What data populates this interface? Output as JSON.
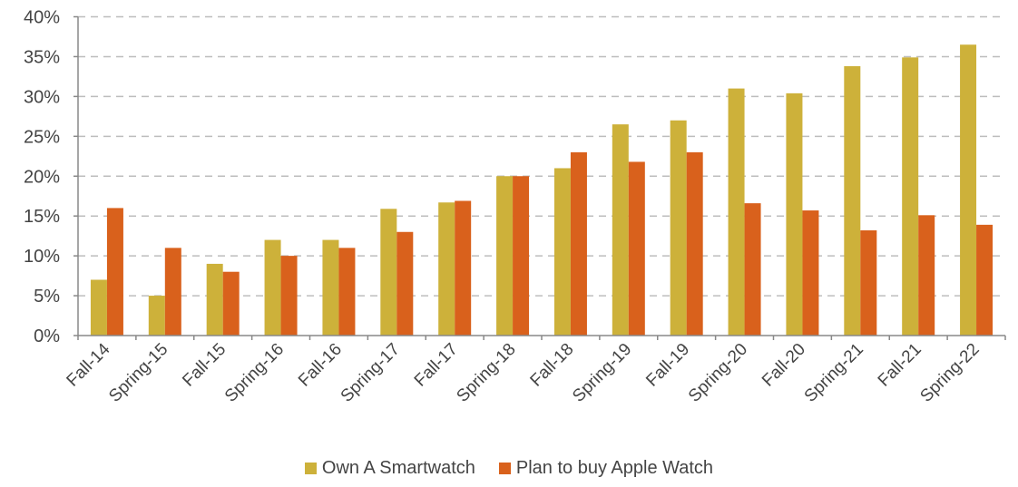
{
  "chart_data": {
    "type": "bar",
    "categories": [
      "Fall-14",
      "Spring-15",
      "Fall-15",
      "Spring-16",
      "Fall-16",
      "Spring-17",
      "Fall-17",
      "Spring-18",
      "Fall-18",
      "Spring-19",
      "Fall-19",
      "Spring-20",
      "Fall-20",
      "Spring-21",
      "Fall-21",
      "Spring-22"
    ],
    "series": [
      {
        "name": "Own A Smartwatch",
        "color": "#CDB13A",
        "values": [
          7.0,
          5.0,
          9.0,
          12.0,
          12.0,
          15.9,
          16.7,
          20.0,
          21.0,
          26.5,
          27.0,
          31.0,
          30.4,
          33.8,
          34.9,
          36.5
        ]
      },
      {
        "name": "Plan to buy Apple Watch",
        "color": "#D9611C",
        "values": [
          16.0,
          11.0,
          8.0,
          10.0,
          11.0,
          13.0,
          16.9,
          20.0,
          23.0,
          21.8,
          23.0,
          16.6,
          15.7,
          13.2,
          15.1,
          13.9
        ]
      }
    ],
    "yticks": [
      "0%",
      "5%",
      "10%",
      "15%",
      "20%",
      "25%",
      "30%",
      "35%",
      "40%"
    ],
    "ylim": [
      0,
      40
    ],
    "yunit": "%",
    "grid": true,
    "grid_style": "dashed",
    "legend_position": "bottom",
    "title": "",
    "xlabel": "",
    "ylabel": ""
  }
}
